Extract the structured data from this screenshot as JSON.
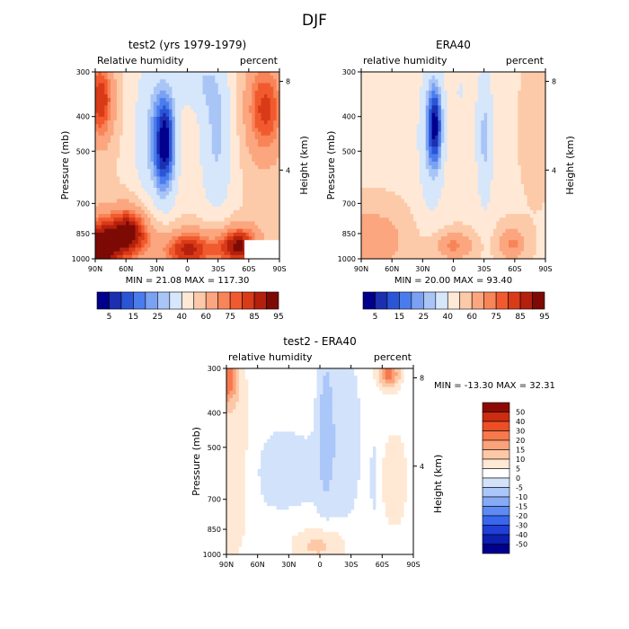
{
  "figure": {
    "title": "DJF",
    "colors": {
      "rh_scale": [
        "#00008c",
        "#1b2fb0",
        "#2a55d6",
        "#4b7cee",
        "#7aa1f2",
        "#a8c5f6",
        "#d6e6fb",
        "#ffe9d6",
        "#fdcaa9",
        "#fba67f",
        "#f88457",
        "#f15a2f",
        "#d93a17",
        "#b3200d",
        "#7d0a05"
      ],
      "diff_scale": [
        "#00008c",
        "#0c1fb0",
        "#1f3fd6",
        "#3866ef",
        "#5d8af4",
        "#86aaf6",
        "#abc6f8",
        "#d2e2fb",
        "#ffffff",
        "#ffe8d4",
        "#fdc8a6",
        "#fba27a",
        "#f7784c",
        "#ec4f25",
        "#cc2c10",
        "#8c0a04"
      ],
      "frame": "#000000"
    }
  },
  "chart_data": [
    {
      "type": "heatmap",
      "id": "panel_test2",
      "title": "test2 (yrs 1979-1979)",
      "left_label": "Relative humidity",
      "right_label": "percent",
      "ylabel": "Pressure (mb)",
      "y2label": "Height (km)",
      "xticks": [
        "90N",
        "60N",
        "30N",
        "0",
        "30S",
        "60S",
        "90S"
      ],
      "yticks": [
        "300",
        "400",
        "500",
        "700",
        "850",
        "1000"
      ],
      "y2ticks": [
        "8",
        "4"
      ],
      "stats": "MIN = 21.08   MAX = 117.30",
      "min": 21.08,
      "max": 117.3,
      "colorbar_labels": [
        "5",
        "15",
        "25",
        "40",
        "60",
        "75",
        "85",
        "95"
      ]
    },
    {
      "type": "heatmap",
      "id": "panel_era40",
      "title": "ERA40",
      "left_label": "relative humidity",
      "right_label": "percent",
      "ylabel": "Pressure (mb)",
      "y2label": "Height (km)",
      "xticks": [
        "90N",
        "60N",
        "30N",
        "0",
        "30S",
        "60S",
        "90S"
      ],
      "yticks": [
        "300",
        "400",
        "500",
        "700",
        "850",
        "1000"
      ],
      "y2ticks": [
        "8",
        "4"
      ],
      "stats": "MIN = 20.00   MAX = 93.40",
      "min": 20.0,
      "max": 93.4,
      "colorbar_labels": [
        "5",
        "15",
        "25",
        "40",
        "60",
        "75",
        "85",
        "95"
      ]
    },
    {
      "type": "heatmap",
      "id": "panel_diff",
      "title": "test2 - ERA40",
      "left_label": "relative humidity",
      "right_label": "percent",
      "ylabel": "Pressure (mb)",
      "y2label": "Height (km)",
      "xticks": [
        "90N",
        "60N",
        "30N",
        "0",
        "30S",
        "60S",
        "90S"
      ],
      "yticks": [
        "300",
        "400",
        "500",
        "700",
        "850",
        "1000"
      ],
      "y2ticks": [
        "8",
        "4"
      ],
      "stats": "MIN = -13.30   MAX =   32.31",
      "min": -13.3,
      "max": 32.31,
      "colorbar_labels": [
        "50",
        "40",
        "30",
        "20",
        "15",
        "10",
        "5",
        "0",
        "-5",
        "-10",
        "-15",
        "-20",
        "-30",
        "-40",
        "-50"
      ]
    }
  ]
}
